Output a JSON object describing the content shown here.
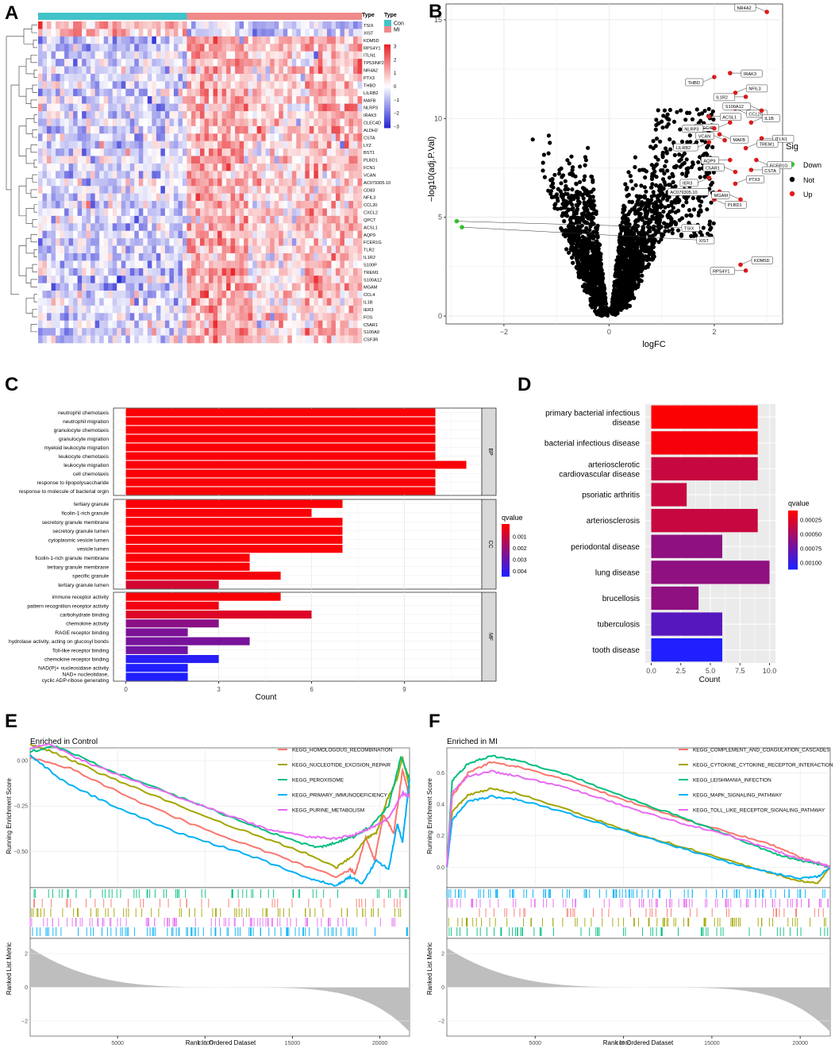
{
  "colors": {
    "con": "#41C3C9",
    "mi": "#F08A8A",
    "heat_low": "#2B2BD6",
    "heat_mid": "#FFFFFF",
    "heat_high": "#E8262B",
    "q_high": "#FF0000",
    "q_low": "#1F1FFF",
    "up": "#E41A1C",
    "down": "#33CC33",
    "not": "#000000",
    "gsea1": "#F8766D",
    "gsea2": "#A3A500",
    "gsea3": "#00BF7D",
    "gsea4": "#00B0F6",
    "gsea5": "#E76BF3",
    "panel_bg": "#EBEBEB",
    "strip": "#D9D9D9",
    "metric_fill": "#BEBEBE"
  },
  "chart_data": [
    {
      "panel": "A",
      "type": "heatmap",
      "samples": {
        "con": 34,
        "mi": 40
      },
      "legend_type_title": "Type",
      "annotation_label": "Type",
      "type_legend": [
        "Con",
        "MI"
      ],
      "scale_ticks": [
        3,
        2,
        1,
        0,
        -1,
        -2,
        -3
      ],
      "genes": [
        "TSIX",
        "XIST",
        "KDM5D",
        "RPS4Y1",
        "ITLN1",
        "TP53INP2",
        "NR4A2",
        "PTX3",
        "THBD",
        "LILRB2",
        "MAFB",
        "NLRP3",
        "IRAK3",
        "CLEC4D",
        "ALDH2",
        "CSTA",
        "LYZ",
        "BST1",
        "PLBD1",
        "FCN1",
        "VCAN",
        "AC079305.10",
        "CD83",
        "NFIL3",
        "CCL20",
        "CXCL2",
        "QPCT",
        "ACSL1",
        "AQP9",
        "FCER1G",
        "TLR2",
        "IL1R2",
        "S100P",
        "TREM1",
        "S100A12",
        "MGAM",
        "CCL4",
        "IL1B",
        "IER3",
        "FOS",
        "C5AR1",
        "S100A9",
        "CSF3R"
      ]
    },
    {
      "panel": "B",
      "type": "scatter",
      "xlabel": "logFC",
      "ylabel": "−log10(adj.P.Val)",
      "xlim": [
        -3.1,
        3.3
      ],
      "ylim": [
        -0.4,
        15.8
      ],
      "xticks": [
        "−2",
        "0",
        "2"
      ],
      "xtick_values": [
        -2,
        0,
        2
      ],
      "yticks": [
        0,
        5,
        10,
        15
      ],
      "legend_title": "Sig",
      "legend": [
        "Down",
        "Not",
        "Up"
      ],
      "labeled_points": [
        {
          "gene": "NR4A2",
          "x": 3.0,
          "y": 15.4,
          "sig": "up"
        },
        {
          "gene": "IRAK3",
          "x": 2.3,
          "y": 12.3,
          "sig": "up"
        },
        {
          "gene": "THBD",
          "x": 2.0,
          "y": 12.1,
          "sig": "up"
        },
        {
          "gene": "NFIL3",
          "x": 2.4,
          "y": 11.3,
          "sig": "up"
        },
        {
          "gene": "IL1R2",
          "x": 2.6,
          "y": 11.1,
          "sig": "up"
        },
        {
          "gene": "CCL20",
          "x": 2.4,
          "y": 10.5,
          "sig": "up"
        },
        {
          "gene": "S100A12",
          "x": 2.9,
          "y": 10.4,
          "sig": "up"
        },
        {
          "gene": "ACSL1",
          "x": 1.9,
          "y": 10.1,
          "sig": "up"
        },
        {
          "gene": "CLEC4D",
          "x": 2.3,
          "y": 9.8,
          "sig": "up"
        },
        {
          "gene": "IL1B",
          "x": 2.7,
          "y": 9.8,
          "sig": "up"
        },
        {
          "gene": "NLRP3",
          "x": 2.0,
          "y": 9.5,
          "sig": "up"
        },
        {
          "gene": "MAFB",
          "x": 2.1,
          "y": 9.2,
          "sig": "up"
        },
        {
          "gene": "VCAN",
          "x": 2.2,
          "y": 8.9,
          "sig": "up"
        },
        {
          "gene": "ITLN1",
          "x": 2.9,
          "y": 9.0,
          "sig": "up"
        },
        {
          "gene": "LILRB2",
          "x": 1.9,
          "y": 8.8,
          "sig": "up"
        },
        {
          "gene": "TREM1",
          "x": 2.6,
          "y": 8.5,
          "sig": "up"
        },
        {
          "gene": "AQP9",
          "x": 2.3,
          "y": 7.9,
          "sig": "up"
        },
        {
          "gene": "FCER1G",
          "x": 2.8,
          "y": 7.9,
          "sig": "up"
        },
        {
          "gene": "C5AR1",
          "x": 2.4,
          "y": 7.3,
          "sig": "up"
        },
        {
          "gene": "CSTA",
          "x": 2.7,
          "y": 7.4,
          "sig": "up"
        },
        {
          "gene": "IER3",
          "x": 1.9,
          "y": 7.0,
          "sig": "up"
        },
        {
          "gene": "PTX3",
          "x": 2.4,
          "y": 6.7,
          "sig": "up"
        },
        {
          "gene": "AC079305.10",
          "x": 2.1,
          "y": 6.3,
          "sig": "up"
        },
        {
          "gene": "PLBD1",
          "x": 2.0,
          "y": 5.9,
          "sig": "up"
        },
        {
          "gene": "MGAM",
          "x": 2.5,
          "y": 5.9,
          "sig": "up"
        },
        {
          "gene": "TSIX",
          "x": -2.9,
          "y": 4.8,
          "sig": "down"
        },
        {
          "gene": "XIST",
          "x": -2.8,
          "y": 4.5,
          "sig": "down"
        },
        {
          "gene": "KDM5D",
          "x": 2.5,
          "y": 2.6,
          "sig": "up"
        },
        {
          "gene": "RPS4Y1",
          "x": 2.6,
          "y": 2.3,
          "sig": "up"
        }
      ]
    },
    {
      "panel": "C",
      "type": "bar",
      "orientation": "horizontal",
      "xlabel": "Count",
      "xticks": [
        0,
        3,
        6,
        9
      ],
      "xlim": [
        -0.4,
        11.5
      ],
      "legend_title": "qvalue",
      "legend_ticks": [
        "0.001",
        "0.002",
        "0.003",
        "0.004"
      ],
      "facets": [
        {
          "name": "BP",
          "terms": [
            {
              "label": "neutrophil chemotaxis",
              "count": 10,
              "qvalue": 0.0001
            },
            {
              "label": "neutrophil migration",
              "count": 10,
              "qvalue": 0.0001
            },
            {
              "label": "granulocyte chemotaxis",
              "count": 10,
              "qvalue": 0.0001
            },
            {
              "label": "granulocyte migration",
              "count": 10,
              "qvalue": 0.0001
            },
            {
              "label": "myeloid leukocyte migration",
              "count": 10,
              "qvalue": 0.0001
            },
            {
              "label": "leukocyte chemotaxis",
              "count": 10,
              "qvalue": 0.0001
            },
            {
              "label": "leukocyte migration",
              "count": 11,
              "qvalue": 0.0001
            },
            {
              "label": "cell chemotaxis",
              "count": 10,
              "qvalue": 0.0001
            },
            {
              "label": "response to lipopolysaccharide",
              "count": 10,
              "qvalue": 0.0001
            },
            {
              "label": "response to molecule of bacterial orgin",
              "count": 10,
              "qvalue": 0.0001
            }
          ]
        },
        {
          "name": "CC",
          "terms": [
            {
              "label": "tertiary granule",
              "count": 7,
              "qvalue": 0.0001
            },
            {
              "label": "ficolin-1-rich granule",
              "count": 6,
              "qvalue": 0.0001
            },
            {
              "label": "secretory granule membrane",
              "count": 7,
              "qvalue": 0.0001
            },
            {
              "label": "secretory granule lumen",
              "count": 7,
              "qvalue": 0.0001
            },
            {
              "label": "cytoplasmic vesicle lumen",
              "count": 7,
              "qvalue": 0.0001
            },
            {
              "label": "vesicle lumen",
              "count": 7,
              "qvalue": 0.0001
            },
            {
              "label": "ficolin-1-rich granule membrane",
              "count": 4,
              "qvalue": 0.0001
            },
            {
              "label": "tertiary granule membrane",
              "count": 4,
              "qvalue": 0.0001
            },
            {
              "label": "specific granule",
              "count": 5,
              "qvalue": 0.0002
            },
            {
              "label": "tertiary granule lumen",
              "count": 3,
              "qvalue": 0.0009
            }
          ]
        },
        {
          "name": "MF",
          "terms": [
            {
              "label": "immune receptor activity",
              "count": 5,
              "qvalue": 0.0001
            },
            {
              "label": "pattern recognition receptor activity",
              "count": 3,
              "qvalue": 0.0003
            },
            {
              "label": "carbohydrate binding",
              "count": 6,
              "qvalue": 0.0007
            },
            {
              "label": "chemokine activity",
              "count": 3,
              "qvalue": 0.0024
            },
            {
              "label": "RAGE receptor binding",
              "count": 2,
              "qvalue": 0.0027
            },
            {
              "label": "hydrolase activity, acting on glucosyl bonds",
              "count": 4,
              "qvalue": 0.0028
            },
            {
              "label": "Toll-like receptor binding",
              "count": 2,
              "qvalue": 0.0029
            },
            {
              "label": "chemokine receptor binding",
              "count": 3,
              "qvalue": 0.0044
            },
            {
              "label": "NAD(P)+ nucleosidase activity",
              "count": 2,
              "qvalue": 0.0046
            },
            {
              "label": "NAD+ nucleotidase,",
              "label2": "cyclic ADP-ribose generating",
              "count": 2,
              "qvalue": 0.0046
            }
          ]
        }
      ]
    },
    {
      "panel": "D",
      "type": "bar",
      "orientation": "horizontal",
      "xlabel": "Count",
      "xticks": [
        "0.0",
        "2.5",
        "5.0",
        "7.5",
        "10.0"
      ],
      "xtick_values": [
        0,
        2.5,
        5,
        7.5,
        10
      ],
      "xlim": [
        -0.5,
        10.5
      ],
      "legend_title": "qvalue",
      "legend_ticks": [
        "0.00025",
        "0.00050",
        "0.00075",
        "0.00100"
      ],
      "terms": [
        {
          "label": "primary bacterial infectious",
          "label2": "disease",
          "count": 9,
          "qvalue": 2e-05
        },
        {
          "label": "bacterial infectious disease",
          "count": 9,
          "qvalue": 5e-05
        },
        {
          "label": "arteriosclerotic",
          "label2": "cardiovascular disease",
          "count": 9,
          "qvalue": 0.0003
        },
        {
          "label": "psoriatic arthritis",
          "count": 3,
          "qvalue": 0.0003
        },
        {
          "label": "arteriosclerosis",
          "count": 9,
          "qvalue": 0.0003
        },
        {
          "label": "periodontal disease",
          "count": 6,
          "qvalue": 0.0006
        },
        {
          "label": "lung disease",
          "count": 10,
          "qvalue": 0.0006
        },
        {
          "label": "brucellosis",
          "count": 4,
          "qvalue": 0.0006
        },
        {
          "label": "tuberculosis",
          "count": 6,
          "qvalue": 0.0009
        },
        {
          "label": "tooth disease",
          "count": 6,
          "qvalue": 0.0012
        }
      ]
    },
    {
      "panel": "E",
      "type": "line",
      "title": "Enriched in Control",
      "ylabel": "Running Enrichment Score",
      "ylabel2": "Ranked List Metric",
      "xlabel": "Rank in Ordered Dataset",
      "xlim": [
        0,
        21700
      ],
      "xticks": [
        5000,
        10000,
        15000,
        20000
      ],
      "yticks": [
        "0.00",
        "−0.25",
        "−0.50"
      ],
      "ytick_values": [
        0,
        -0.25,
        -0.5
      ],
      "ylim": [
        -0.7,
        0.07
      ],
      "metric_ticks": [
        "2",
        "0",
        "−2"
      ],
      "metric_tick_values": [
        2,
        0,
        -2
      ],
      "metric_lim": [
        -2.9,
        2.9
      ],
      "series": [
        {
          "name": "KEGG_HOMOLOGOUS_RECOMBINATION",
          "x": [
            0,
            2500,
            6000,
            10000,
            14000,
            17500,
            18300,
            18600,
            19200,
            19700,
            20200,
            20800,
            21300,
            21700
          ],
          "values": [
            0.02,
            -0.05,
            -0.22,
            -0.38,
            -0.52,
            -0.64,
            -0.6,
            -0.62,
            -0.42,
            -0.55,
            -0.3,
            -0.4,
            -0.05,
            -0.2
          ]
        },
        {
          "name": "KEGG_NUCLEOTIDE_EXCISION_REPAIR",
          "x": [
            0,
            1500,
            4000,
            8000,
            12000,
            15500,
            17500,
            18500,
            19200,
            19800,
            20400,
            21000,
            21300,
            21700
          ],
          "values": [
            0.09,
            0.04,
            -0.07,
            -0.23,
            -0.38,
            -0.5,
            -0.59,
            -0.52,
            -0.43,
            -0.4,
            -0.22,
            -0.1,
            0.02,
            -0.15
          ]
        },
        {
          "name": "KEGG_PEROXISOME",
          "x": [
            0,
            1500,
            4500,
            8500,
            12500,
            15000,
            16500,
            17500,
            18500,
            19500,
            20500,
            21200,
            21700
          ],
          "values": [
            0.05,
            0.08,
            -0.05,
            -0.2,
            -0.35,
            -0.44,
            -0.48,
            -0.45,
            -0.42,
            -0.36,
            -0.25,
            0.02,
            -0.1
          ]
        },
        {
          "name": "KEGG_PRIMARY_IMMUNODEFICIENCY",
          "x": [
            0,
            2000,
            5000,
            8500,
            12500,
            16000,
            17500,
            18300,
            19000,
            19800,
            20500,
            21000,
            21300,
            21700
          ],
          "values": [
            0.03,
            -0.12,
            -0.26,
            -0.4,
            -0.52,
            -0.65,
            -0.69,
            -0.64,
            -0.68,
            -0.55,
            -0.6,
            -0.35,
            -0.45,
            -0.1
          ]
        },
        {
          "name": "KEGG_PURINE_METABOLISM",
          "x": [
            0,
            1000,
            3500,
            7000,
            11000,
            14000,
            16000,
            17500,
            18500,
            19500,
            20500,
            21300,
            21700
          ],
          "values": [
            0.07,
            0.09,
            -0.02,
            -0.15,
            -0.29,
            -0.39,
            -0.42,
            -0.43,
            -0.41,
            -0.37,
            -0.32,
            -0.18,
            -0.2
          ]
        }
      ]
    },
    {
      "panel": "F",
      "type": "line",
      "title": "Enriched in MI",
      "ylabel": "Running Enrichment Score",
      "ylabel2": "Ranked List Metric",
      "xlabel": "Rank in Ordered Dataset",
      "xlim": [
        0,
        21700
      ],
      "xticks": [
        5000,
        10000,
        15000,
        20000
      ],
      "yticks": [
        "0.0",
        "0.2",
        "0.4",
        "0.6"
      ],
      "ytick_values": [
        0,
        0.2,
        0.4,
        0.6
      ],
      "ylim": [
        -0.13,
        0.76
      ],
      "metric_ticks": [
        "2",
        "0",
        "−2"
      ],
      "metric_tick_values": [
        2,
        0,
        -2
      ],
      "metric_lim": [
        -2.9,
        2.9
      ],
      "series": [
        {
          "name": "KEGG_COMPLEMENT_AND_COAGULATION_CASCADES",
          "x": [
            0,
            300,
            1200,
            2500,
            4000,
            7000,
            10000,
            13000,
            16000,
            18500,
            20000,
            21000,
            21700
          ],
          "values": [
            0,
            0.45,
            0.6,
            0.67,
            0.64,
            0.55,
            0.43,
            0.32,
            0.22,
            0.14,
            0.06,
            0.03,
            0
          ]
        },
        {
          "name": "KEGG_CYTOKINE_CYTOKINE_RECEPTOR_INTERACTION",
          "x": [
            0,
            300,
            1200,
            2500,
            4000,
            7000,
            10000,
            13000,
            16000,
            18500,
            20000,
            21000,
            21700
          ],
          "values": [
            0,
            0.35,
            0.46,
            0.5,
            0.47,
            0.36,
            0.24,
            0.14,
            0.04,
            -0.04,
            -0.09,
            -0.1,
            0
          ]
        },
        {
          "name": "KEGG_LEISHMANIA_INFECTION",
          "x": [
            0,
            300,
            1200,
            2500,
            4000,
            7000,
            10000,
            13000,
            16000,
            18500,
            20000,
            21000,
            21700
          ],
          "values": [
            0,
            0.55,
            0.66,
            0.71,
            0.68,
            0.58,
            0.45,
            0.33,
            0.2,
            0.09,
            0.04,
            0.02,
            0
          ]
        },
        {
          "name": "KEGG_MAPK_SIGNALING_PATHWAY",
          "x": [
            0,
            300,
            1200,
            2500,
            4000,
            7000,
            10000,
            13000,
            16000,
            18500,
            20000,
            21000,
            21700
          ],
          "values": [
            0,
            0.3,
            0.42,
            0.45,
            0.43,
            0.34,
            0.23,
            0.13,
            0.03,
            -0.04,
            -0.07,
            -0.06,
            0
          ]
        },
        {
          "name": "KEGG_TOLL_LIKE_RECEPTOR_SIGNALING_PATHWAY",
          "x": [
            0,
            300,
            1200,
            2500,
            4000,
            7000,
            10000,
            13000,
            16000,
            18500,
            20000,
            21000,
            21700
          ],
          "values": [
            0,
            0.48,
            0.58,
            0.61,
            0.58,
            0.5,
            0.39,
            0.29,
            0.2,
            0.11,
            0.05,
            0.03,
            0
          ]
        }
      ]
    }
  ],
  "panel_letters": [
    "A",
    "B",
    "C",
    "D",
    "E",
    "F"
  ]
}
